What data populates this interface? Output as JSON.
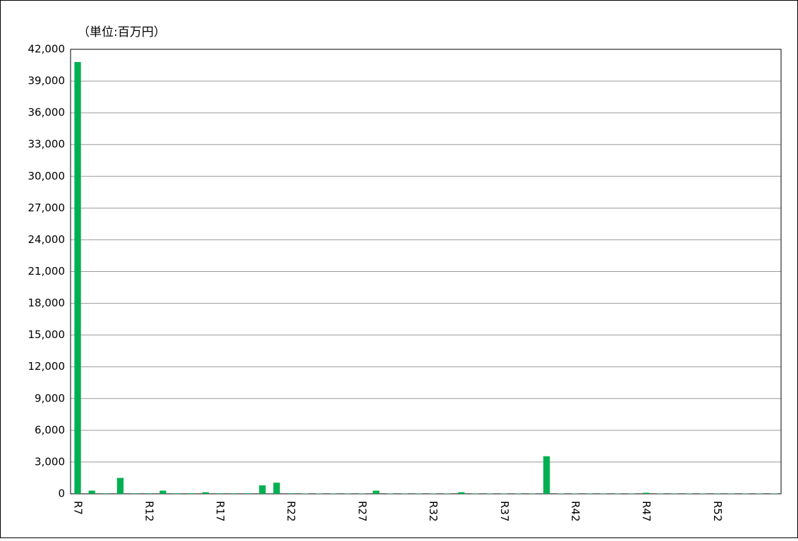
{
  "chart_data": {
    "type": "bar",
    "unit_label": "（単位:百万円）",
    "color": "#00b050",
    "categories": [
      "R7",
      null,
      null,
      null,
      null,
      "R12",
      null,
      null,
      null,
      null,
      "R17",
      null,
      null,
      null,
      null,
      "R22",
      null,
      null,
      null,
      null,
      "R27",
      null,
      null,
      null,
      null,
      "R32",
      null,
      null,
      null,
      null,
      "R37",
      null,
      null,
      null,
      null,
      "R42",
      null,
      null,
      null,
      null,
      "R47",
      null,
      null,
      null,
      null,
      "R52",
      null,
      null,
      null,
      null
    ],
    "values": [
      40800,
      300,
      50,
      1500,
      50,
      50,
      300,
      50,
      50,
      150,
      50,
      50,
      50,
      800,
      1050,
      50,
      30,
      30,
      30,
      30,
      30,
      300,
      30,
      30,
      30,
      30,
      30,
      150,
      30,
      30,
      30,
      30,
      30,
      3550,
      30,
      30,
      30,
      30,
      30,
      30,
      100,
      30,
      30,
      30,
      30,
      30,
      30,
      30,
      30,
      30
    ],
    "ylim": [
      0,
      42000
    ],
    "yticks": [
      {
        "value": 0,
        "label": "0"
      },
      {
        "value": 3000,
        "label": "3,000"
      },
      {
        "value": 6000,
        "label": "6,000"
      },
      {
        "value": 9000,
        "label": "9,000"
      },
      {
        "value": 12000,
        "label": "12,000"
      },
      {
        "value": 15000,
        "label": "15,000"
      },
      {
        "value": 18000,
        "label": "18,000"
      },
      {
        "value": 21000,
        "label": "21,000"
      },
      {
        "value": 24000,
        "label": "24,000"
      },
      {
        "value": 27000,
        "label": "27,000"
      },
      {
        "value": 30000,
        "label": "30,000"
      },
      {
        "value": 33000,
        "label": "33,000"
      },
      {
        "value": 36000,
        "label": "36,000"
      },
      {
        "value": 39000,
        "label": "39,000"
      },
      {
        "value": 42000,
        "label": "42,000"
      }
    ],
    "grid": true
  }
}
